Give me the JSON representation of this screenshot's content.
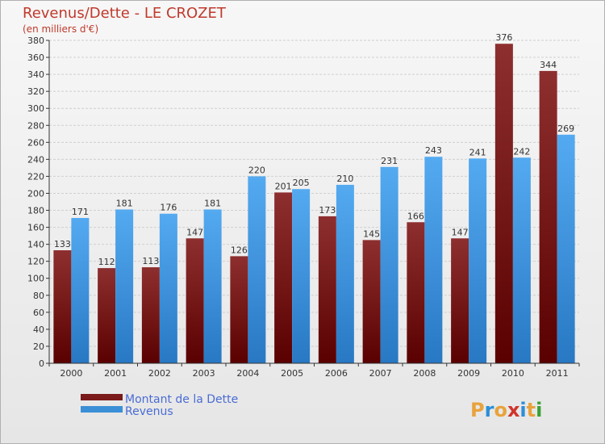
{
  "chart_data": {
    "type": "bar",
    "title": "Revenus/Dette - LE CROZET",
    "subtitle": "(en milliers d'€)",
    "categories": [
      "2000",
      "2001",
      "2002",
      "2003",
      "2004",
      "2005",
      "2006",
      "2007",
      "2008",
      "2009",
      "2010",
      "2011"
    ],
    "series": [
      {
        "name": "Montant de la Dette",
        "color": "#7a1a1a",
        "values": [
          133,
          112,
          113,
          147,
          126,
          201,
          173,
          145,
          166,
          147,
          376,
          344
        ]
      },
      {
        "name": "Revenus",
        "color": "#3a8fd6",
        "values": [
          171,
          181,
          176,
          181,
          220,
          205,
          210,
          231,
          243,
          241,
          242,
          269
        ]
      }
    ],
    "ylim": [
      0,
      380
    ],
    "yticks": [
      0,
      20,
      40,
      60,
      80,
      100,
      120,
      140,
      160,
      180,
      200,
      220,
      240,
      260,
      280,
      300,
      320,
      340,
      360,
      380
    ],
    "grid": true,
    "legend": "bottom-left"
  },
  "logo": {
    "text": "Proxiti",
    "colors": [
      "#e8a33d",
      "#2a8fd6",
      "#e8a33d",
      "#d0342c",
      "#2a8fd6",
      "#e8a33d",
      "#3aa035"
    ]
  }
}
